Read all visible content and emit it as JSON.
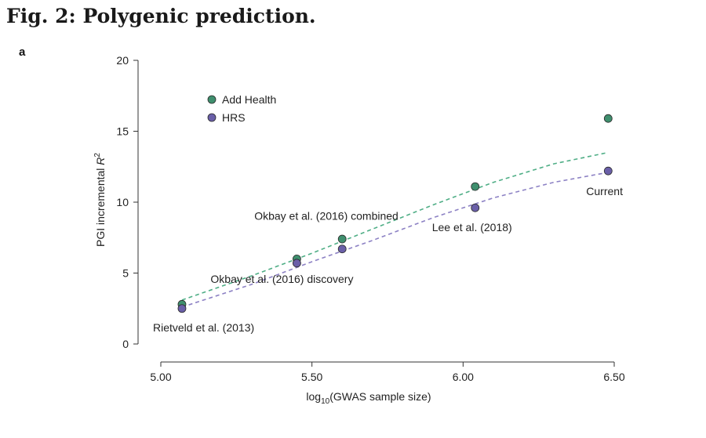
{
  "figure": {
    "title": "Fig. 2: Polygenic prediction.",
    "panel": "a"
  },
  "chart_data": {
    "type": "scatter",
    "xlabel_main": "log",
    "xlabel_sub": "10",
    "xlabel_rest": "(GWAS sample size)",
    "ylabel_main": "PGI incremental ",
    "ylabel_italic": "R",
    "ylabel_sup": "2",
    "xlim": [
      5.0,
      6.5
    ],
    "ylim": [
      0,
      20
    ],
    "xticks": [
      5.0,
      5.5,
      6.0,
      6.5
    ],
    "xtick_labels": [
      "5.00",
      "5.50",
      "6.00",
      "6.50"
    ],
    "yticks": [
      0,
      5,
      10,
      15,
      20
    ],
    "ytick_labels": [
      "0",
      "5",
      "10",
      "15",
      "20"
    ],
    "grid": false,
    "legend_placement": "top-left",
    "series": [
      {
        "name": "Add Health",
        "color": "#3f8f6e",
        "points": [
          [
            5.07,
            2.8
          ],
          [
            5.45,
            6.0
          ],
          [
            5.6,
            7.4
          ],
          [
            6.04,
            11.1
          ],
          [
            6.48,
            15.9
          ]
        ],
        "fit": [
          [
            5.07,
            3.1
          ],
          [
            5.3,
            4.8
          ],
          [
            5.5,
            6.4
          ],
          [
            5.7,
            8.1
          ],
          [
            5.9,
            9.8
          ],
          [
            6.1,
            11.4
          ],
          [
            6.3,
            12.7
          ],
          [
            6.48,
            13.5
          ]
        ],
        "fit_color": "#4fae86"
      },
      {
        "name": "HRS",
        "color": "#6a5fa8",
        "points": [
          [
            5.07,
            2.5
          ],
          [
            5.45,
            5.7
          ],
          [
            5.6,
            6.7
          ],
          [
            6.04,
            9.6
          ],
          [
            6.48,
            12.2
          ]
        ],
        "fit": [
          [
            5.07,
            2.6
          ],
          [
            5.3,
            4.2
          ],
          [
            5.5,
            5.8
          ],
          [
            5.7,
            7.3
          ],
          [
            5.9,
            8.9
          ],
          [
            6.1,
            10.3
          ],
          [
            6.3,
            11.4
          ],
          [
            6.48,
            12.1
          ]
        ],
        "fit_color": "#8c81c4"
      }
    ],
    "annotations": [
      {
        "text": "Rietveld et al. (2013)",
        "x": 5.07,
        "y": 2.6,
        "anchor": "below-left"
      },
      {
        "text": "Okbay et al. (2016) discovery",
        "x": 5.45,
        "y": 5.8,
        "anchor": "below"
      },
      {
        "text": "Okbay et al. (2016) combined",
        "x": 5.6,
        "y": 7.0,
        "anchor": "above-left"
      },
      {
        "text": "Lee et al. (2018)",
        "x": 6.04,
        "y": 9.6,
        "anchor": "below-left"
      },
      {
        "text": "Current",
        "x": 6.48,
        "y": 12.2,
        "anchor": "below-right"
      }
    ]
  }
}
